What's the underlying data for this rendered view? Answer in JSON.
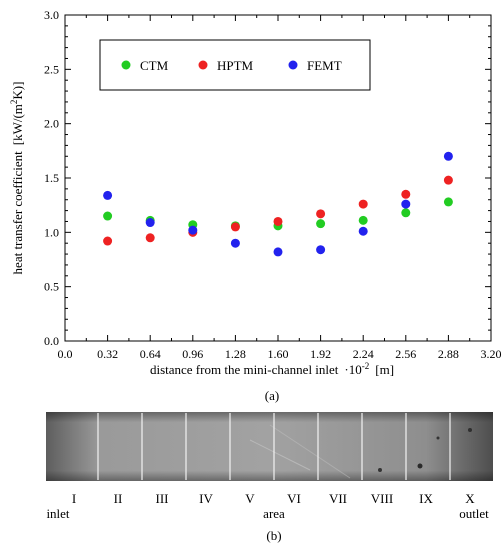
{
  "chart_data": {
    "type": "scatter",
    "x": [
      0.32,
      0.64,
      0.96,
      1.28,
      1.6,
      1.92,
      2.24,
      2.56,
      2.88
    ],
    "series": [
      {
        "name": "CTM",
        "color": "#22cc22",
        "values": [
          1.15,
          1.11,
          1.07,
          1.06,
          1.06,
          1.08,
          1.11,
          1.18,
          1.28
        ]
      },
      {
        "name": "HPTM",
        "color": "#ee2222",
        "values": [
          0.92,
          0.95,
          1.0,
          1.05,
          1.1,
          1.17,
          1.26,
          1.35,
          1.48
        ]
      },
      {
        "name": "FEMT",
        "color": "#2222ee",
        "values": [
          1.34,
          1.09,
          1.02,
          0.9,
          0.82,
          0.84,
          1.01,
          1.26,
          1.7
        ]
      }
    ],
    "xlim": [
      0.0,
      3.2
    ],
    "ylim": [
      0.0,
      3.0
    ],
    "x_ticks": [
      "0.0",
      "0.32",
      "0.64",
      "0.96",
      "1.28",
      "1.60",
      "1.92",
      "2.24",
      "2.56",
      "2.88",
      "3.20"
    ],
    "y_ticks": [
      "0.0",
      "0.5",
      "1.0",
      "1.5",
      "2.0",
      "2.5",
      "3.0"
    ],
    "xlabel_main": "distance from the mini-channel inlet",
    "xlabel_factor": "·10",
    "xlabel_exp": "-2",
    "xlabel_unit": "[m]",
    "ylabel_main": "heat transfer coefficient",
    "ylabel_unit_a": "[kW/(m",
    "ylabel_unit_exp": "2",
    "ylabel_unit_b": "K)]",
    "legend_position": "top-left",
    "grid": false,
    "caption": "(a)"
  },
  "strip": {
    "area_labels": [
      "I",
      "II",
      "III",
      "IV",
      "V",
      "VI",
      "VII",
      "VIII",
      "IX",
      "X"
    ],
    "inlet_label": "inlet",
    "area_label": "area",
    "outlet_label": "outlet",
    "caption": "(b)"
  }
}
